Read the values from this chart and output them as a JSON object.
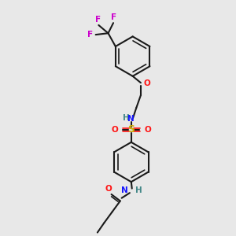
{
  "bg_color": "#e8e8e8",
  "bond_color": "#1a1a1a",
  "N_color": "#1414ff",
  "O_color": "#ff1414",
  "S_color": "#ccaa00",
  "F_color": "#cc00cc",
  "H_color": "#448888",
  "fig_w": 3.0,
  "fig_h": 3.0,
  "dpi": 100,
  "xlim": [
    0,
    10
  ],
  "ylim": [
    0,
    16
  ],
  "lw": 1.5,
  "lw_double": 1.2,
  "fs": 7.5
}
